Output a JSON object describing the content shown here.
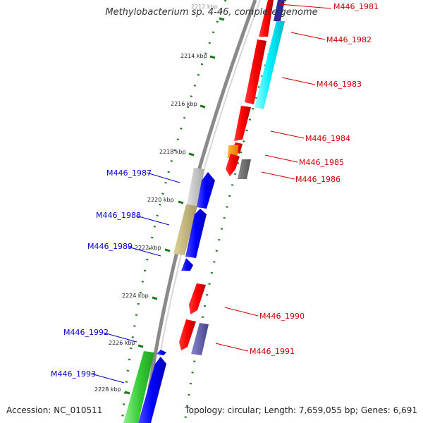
{
  "title": "Methylobacterium sp. 4-46, complete genome",
  "accession": "Accession: NC_010511",
  "summary": "Topology: circular; Length: 7,659,055 bp; Genes: 6,691",
  "colors": {
    "reverse_label": "#0000cc",
    "forward_label": "#cc0000",
    "ruler": "#1a7a1a",
    "backbone": "#8a8a8a"
  },
  "ruler_ticks": [
    "2212 kbp",
    "2214 kbp",
    "2216 kbp",
    "2218 kbp",
    "2220 kbp",
    "2222 kbp",
    "2224 kbp",
    "2226 kbp",
    "2228 kbp"
  ],
  "gene_labels": {
    "forward": [
      "M446_1981",
      "M446_1982",
      "M446_1983",
      "M446_1984",
      "M446_1985",
      "M446_1986",
      "M446_1990",
      "M446_1991"
    ],
    "reverse": [
      "M446_1987",
      "M446_1988",
      "M446_1989",
      "M446_1992",
      "M446_1993"
    ]
  }
}
